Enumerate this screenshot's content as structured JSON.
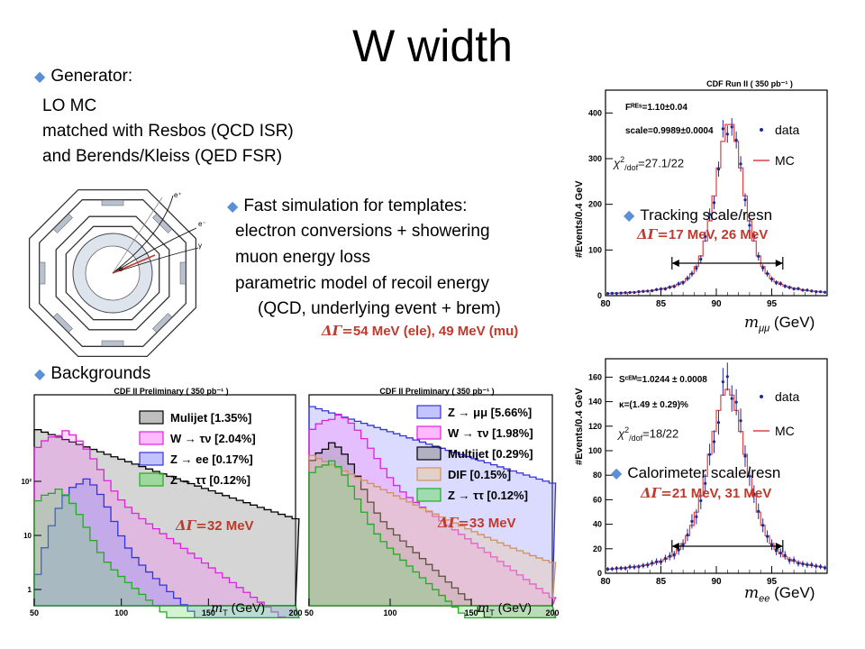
{
  "title": "W width",
  "generator": {
    "heading": "Generator:",
    "lines": [
      "LO MC",
      "matched with Resbos (QCD ISR)",
      "and Berends/Kleiss (QED FSR)"
    ]
  },
  "fastsim": {
    "heading": "Fast simulation for templates:",
    "lines": [
      "electron conversions + showering",
      "muon energy loss",
      "parametric model of recoil energy",
      "(QCD, underlying event + brem)"
    ],
    "delta": "54 MeV (ele), 49 MeV (mu)"
  },
  "backgrounds": {
    "heading": "Backgrounds"
  },
  "detector_labels": [
    "e⁺",
    "e⁻",
    "e",
    "γ"
  ],
  "top_plot": {
    "title": "CDF Run II ( 350 pb⁻¹ )",
    "ylabel": "#Events/0.4 GeV",
    "xlabel_sym": "m",
    "xlabel_sub": "μμ",
    "xlabel_unit": "(GeV)",
    "fres": "Fᴿᴱˢ=1.10±0.04",
    "scale": "scale=0.9989±0.0004",
    "legend_data": "data",
    "legend_mc": "MC",
    "chi2_sym": "χ",
    "chi2_exp": "2",
    "chi2_dof": "/dof",
    "chi2_val": "=27.1/22",
    "bullet": "Tracking scale/resn",
    "delta": "17 MeV, 26 MeV",
    "xticks": [
      "80",
      "85",
      "90",
      "95"
    ],
    "yticks": [
      "0",
      "100",
      "200",
      "300",
      "400"
    ]
  },
  "bottom_plot": {
    "ylabel": "#Events/0.4 GeV",
    "xlabel_sym": "m",
    "xlabel_sub": "ee",
    "xlabel_unit": "(GeV)",
    "scem": "Sᶜᴱᴹ=1.0244 ± 0.0008",
    "kappa": "κ=(1.49 ± 0.29)%",
    "legend_data": "data",
    "legend_mc": "MC",
    "chi2_sym": "χ",
    "chi2_exp": "2",
    "chi2_dof": "/dof",
    "chi2_val": "=18/22",
    "bullet": "Calorimeter scale/resn",
    "delta": "21 MeV, 31 MeV",
    "xticks": [
      "80",
      "85",
      "90",
      "95"
    ],
    "yticks": [
      "0",
      "20",
      "40",
      "60",
      "80",
      "100",
      "120",
      "140",
      "160"
    ]
  },
  "bg_left": {
    "title": "CDF II Preliminary ( 350 pb⁻¹ )",
    "legend": [
      "Mulijet [1.35%]",
      "W → τν [2.04%]",
      "Z → ee [0.17%]",
      "Z → ττ [0.12%]"
    ],
    "delta": "32 MeV",
    "xlabel": "(GeV)",
    "xticks": [
      "50",
      "100",
      "150",
      "200"
    ],
    "yticks": [
      "1",
      "10",
      "10²"
    ]
  },
  "bg_right": {
    "title": "CDF II Preliminary ( 350 pb⁻¹ )",
    "legend": [
      "Z → μμ [5.66%]",
      "W → τν [1.98%]",
      "Multijet [0.29%]",
      "DIF [0.15%]",
      "Z → ττ [0.12%]"
    ],
    "delta": "33 MeV",
    "xlabel": "(GeV)",
    "xticks": [
      "50",
      "100",
      "150",
      "200"
    ]
  },
  "mt_sym": "m",
  "mt_sub": "T",
  "delta_prefix": "ΔΓ=",
  "colors": {
    "accent": "#c0392b",
    "bullet": "#5b8fd6",
    "mc": "#e04040",
    "data": "#1a2a9a"
  }
}
